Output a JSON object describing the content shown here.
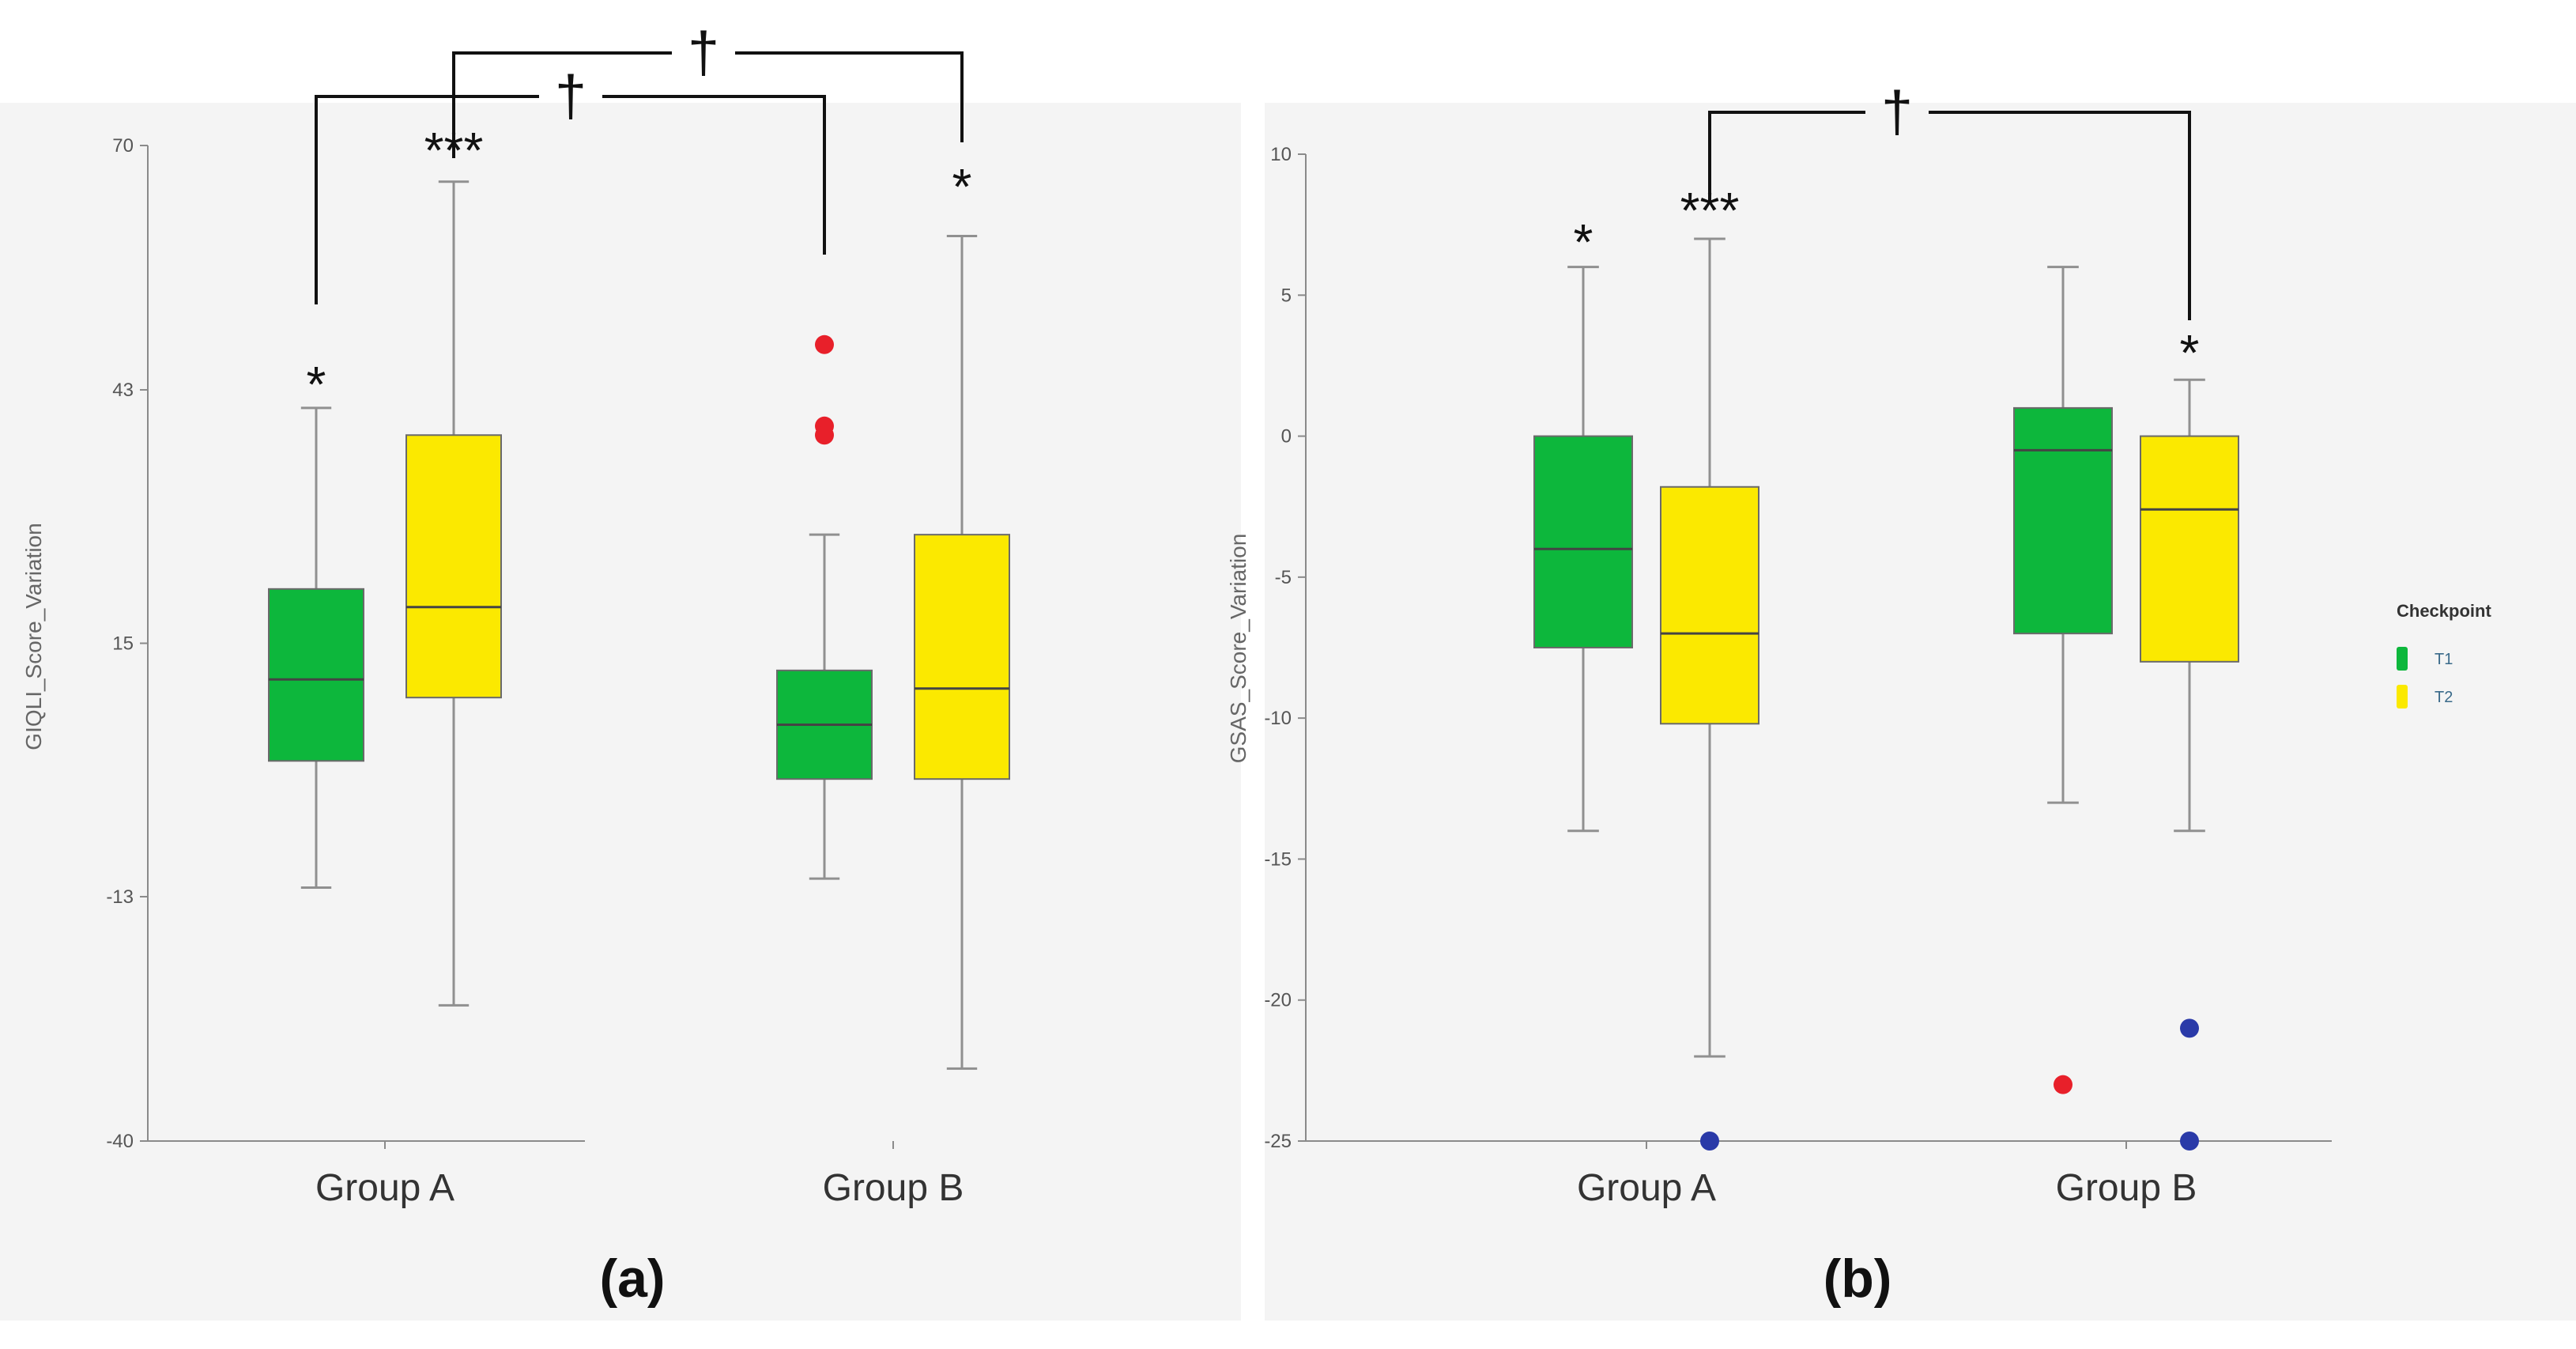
{
  "colors": {
    "t1": "#0db73c",
    "t2": "#fbe900",
    "outlier_red": "#e8202a",
    "outlier_blue": "#2a3aa8",
    "panel_bg": "#f4f4f4",
    "axis": "#8a8a8a",
    "whisker": "#909090",
    "bracket": "#111111"
  },
  "legend": {
    "title": "Checkpoint",
    "items": [
      {
        "label": "T1",
        "color_key": "t1"
      },
      {
        "label": "T2",
        "color_key": "t2"
      }
    ]
  },
  "chart_data": [
    {
      "type": "boxplot",
      "panel_label": "(a)",
      "title": "",
      "xlabel": "",
      "ylabel": "GIQLI_Score_Variation",
      "ylim": [
        -40,
        70
      ],
      "yticks": [
        -40,
        -13,
        15,
        43,
        70
      ],
      "categories": [
        "Group A",
        "Group B"
      ],
      "series": [
        {
          "name": "T1",
          "boxes": [
            {
              "min": -12,
              "q1": 2,
              "median": 11,
              "q3": 21,
              "max": 41
            },
            {
              "min": -11,
              "q1": 0,
              "median": 6,
              "q3": 12,
              "max": 27,
              "outliers": [
                48,
                39,
                38
              ]
            }
          ]
        },
        {
          "name": "T2",
          "boxes": [
            {
              "min": -25,
              "q1": 9,
              "median": 19,
              "q3": 38,
              "max": 66
            },
            {
              "min": -32,
              "q1": 0,
              "median": 10,
              "q3": 27,
              "max": 60
            }
          ]
        }
      ],
      "annotations": [
        {
          "text": "*",
          "anchor": "Group A T1"
        },
        {
          "text": "***",
          "anchor": "Group A T2"
        },
        {
          "text": "*",
          "anchor": "Group B T2"
        }
      ],
      "brackets": [
        {
          "from": "Group A T1",
          "to": "Group B T1",
          "symbol": "†"
        },
        {
          "from": "Group A T2",
          "to": "Group B T2",
          "symbol": "†"
        }
      ]
    },
    {
      "type": "boxplot",
      "panel_label": "(b)",
      "title": "",
      "xlabel": "",
      "ylabel": "GSAS_Score_Variation",
      "ylim": [
        -25,
        10
      ],
      "yticks": [
        10,
        5,
        0,
        -5,
        -10,
        -15,
        -20,
        -25
      ],
      "categories": [
        "Group A",
        "Group B"
      ],
      "series": [
        {
          "name": "T1",
          "boxes": [
            {
              "min": -14,
              "q1": -7.5,
              "median": -4,
              "q3": 0,
              "max": 6
            },
            {
              "min": -13,
              "q1": -7,
              "median": -0.5,
              "q3": 1,
              "max": 6,
              "outliers": [
                -23
              ]
            }
          ]
        },
        {
          "name": "T2",
          "boxes": [
            {
              "min": -22,
              "q1": -10.2,
              "median": -7,
              "q3": -1.8,
              "max": 7,
              "outliers": [
                -25
              ]
            },
            {
              "min": -14,
              "q1": -8,
              "median": -2.6,
              "q3": 0,
              "max": 2,
              "outliers": [
                -21,
                -25
              ]
            }
          ]
        }
      ],
      "annotations": [
        {
          "text": "*",
          "anchor": "Group A T1"
        },
        {
          "text": "***",
          "anchor": "Group A T2"
        },
        {
          "text": "*",
          "anchor": "Group B T2"
        }
      ],
      "brackets": [
        {
          "from": "Group A T2",
          "to": "Group B T2",
          "symbol": "†"
        }
      ]
    }
  ]
}
